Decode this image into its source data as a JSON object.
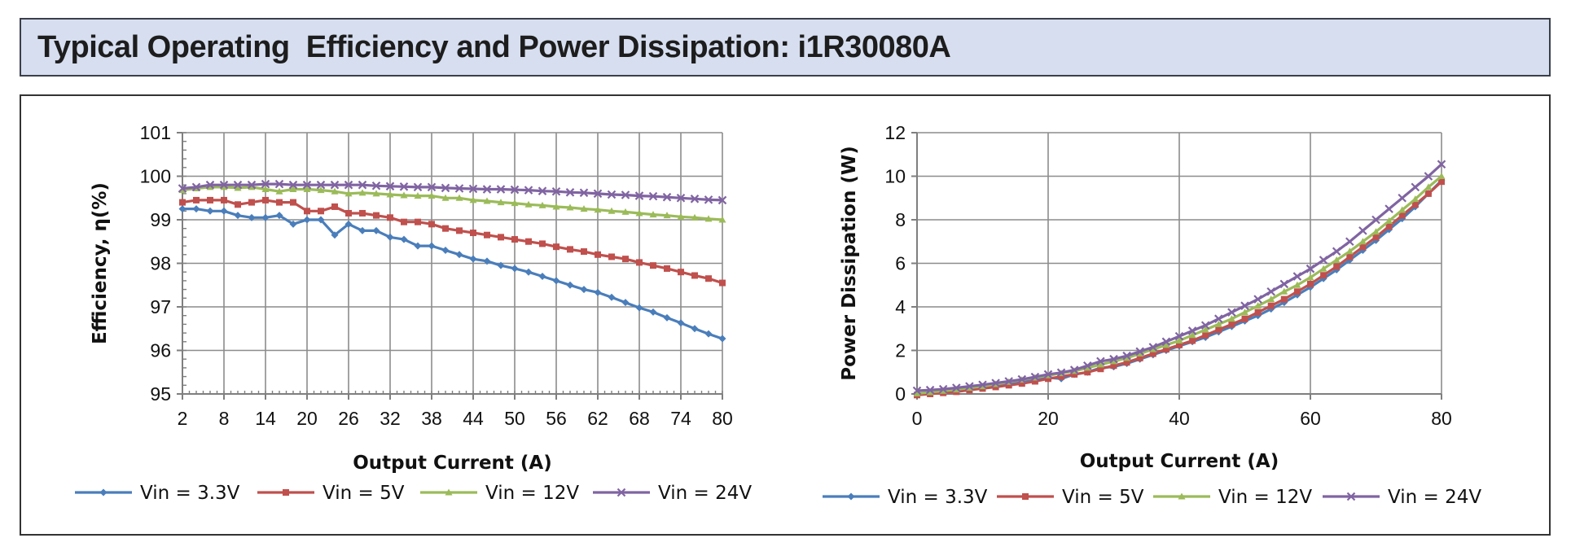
{
  "header": {
    "title": "Typical Operating  Efficiency and Power Dissipation: i1R30080A"
  },
  "colors": {
    "title_bg": "#d6deef",
    "vin_3_3": "#4a7ebb",
    "vin_5": "#c0504d",
    "vin_12": "#9bbb59",
    "vin_24": "#8064a2"
  },
  "chart_data": [
    {
      "type": "line",
      "title": "",
      "xlabel": "Output Current (A)",
      "ylabel": "Efficiency, η(%)",
      "xlim": [
        2,
        80
      ],
      "ylim": [
        95,
        101
      ],
      "xticks": [
        "2",
        "8",
        "14",
        "20",
        "26",
        "32",
        "38",
        "44",
        "50",
        "56",
        "62",
        "68",
        "74",
        "80"
      ],
      "yticks": [
        "95",
        "96",
        "97",
        "98",
        "99",
        "100",
        "101"
      ],
      "grid": true,
      "legend": "bottom",
      "series": [
        {
          "name": "Vin = 3.3V",
          "color": "#4a7ebb",
          "marker": "diamond",
          "x": [
            2,
            4,
            6,
            8,
            10,
            12,
            14,
            16,
            18,
            20,
            22,
            24,
            26,
            28,
            30,
            32,
            34,
            36,
            38,
            40,
            42,
            44,
            46,
            48,
            50,
            52,
            54,
            56,
            58,
            60,
            62,
            64,
            66,
            68,
            70,
            72,
            74,
            76,
            78,
            80
          ],
          "y": [
            99.25,
            99.25,
            99.2,
            99.2,
            99.1,
            99.05,
            99.05,
            99.1,
            98.9,
            99.0,
            99.0,
            98.65,
            98.9,
            98.75,
            98.75,
            98.6,
            98.55,
            98.4,
            98.4,
            98.3,
            98.2,
            98.1,
            98.05,
            97.95,
            97.88,
            97.8,
            97.7,
            97.6,
            97.5,
            97.4,
            97.33,
            97.22,
            97.1,
            96.98,
            96.88,
            96.75,
            96.63,
            96.5,
            96.38,
            96.27
          ]
        },
        {
          "name": "Vin = 5V",
          "color": "#c0504d",
          "marker": "square",
          "x": [
            2,
            4,
            6,
            8,
            10,
            12,
            14,
            16,
            18,
            20,
            22,
            24,
            26,
            28,
            30,
            32,
            34,
            36,
            38,
            40,
            42,
            44,
            46,
            48,
            50,
            52,
            54,
            56,
            58,
            60,
            62,
            64,
            66,
            68,
            70,
            72,
            74,
            76,
            78,
            80
          ],
          "y": [
            99.4,
            99.45,
            99.45,
            99.45,
            99.35,
            99.4,
            99.45,
            99.4,
            99.4,
            99.2,
            99.2,
            99.3,
            99.15,
            99.15,
            99.1,
            99.05,
            98.95,
            98.95,
            98.9,
            98.8,
            98.75,
            98.7,
            98.65,
            98.6,
            98.55,
            98.5,
            98.45,
            98.38,
            98.32,
            98.27,
            98.2,
            98.15,
            98.1,
            98.02,
            97.95,
            97.88,
            97.8,
            97.72,
            97.65,
            97.55
          ]
        },
        {
          "name": "Vin = 12V",
          "color": "#9bbb59",
          "marker": "triangle",
          "x": [
            2,
            4,
            6,
            8,
            10,
            12,
            14,
            16,
            18,
            20,
            22,
            24,
            26,
            28,
            30,
            32,
            34,
            36,
            38,
            40,
            42,
            44,
            46,
            48,
            50,
            52,
            54,
            56,
            58,
            60,
            62,
            64,
            66,
            68,
            70,
            72,
            74,
            76,
            78,
            80
          ],
          "y": [
            99.68,
            99.72,
            99.75,
            99.75,
            99.73,
            99.75,
            99.7,
            99.65,
            99.7,
            99.7,
            99.68,
            99.65,
            99.6,
            99.62,
            99.6,
            99.58,
            99.56,
            99.55,
            99.55,
            99.5,
            99.5,
            99.45,
            99.43,
            99.4,
            99.38,
            99.35,
            99.33,
            99.3,
            99.28,
            99.25,
            99.23,
            99.2,
            99.18,
            99.15,
            99.12,
            99.1,
            99.07,
            99.05,
            99.02,
            99.0
          ]
        },
        {
          "name": "Vin = 24V",
          "color": "#8064a2",
          "marker": "cross",
          "x": [
            2,
            4,
            6,
            8,
            10,
            12,
            14,
            16,
            18,
            20,
            22,
            24,
            26,
            28,
            30,
            32,
            34,
            36,
            38,
            40,
            42,
            44,
            46,
            48,
            50,
            52,
            54,
            56,
            58,
            60,
            62,
            64,
            66,
            68,
            70,
            72,
            74,
            76,
            78,
            80
          ],
          "y": [
            99.72,
            99.75,
            99.8,
            99.8,
            99.8,
            99.8,
            99.82,
            99.82,
            99.8,
            99.8,
            99.8,
            99.8,
            99.8,
            99.8,
            99.78,
            99.77,
            99.76,
            99.75,
            99.75,
            99.73,
            99.72,
            99.71,
            99.7,
            99.7,
            99.69,
            99.68,
            99.66,
            99.65,
            99.63,
            99.62,
            99.6,
            99.58,
            99.57,
            99.55,
            99.54,
            99.52,
            99.5,
            99.48,
            99.46,
            99.45
          ]
        }
      ]
    },
    {
      "type": "line",
      "title": "",
      "xlabel": "Output Current (A)",
      "ylabel": "Power Dissipation (W)",
      "xlim": [
        0,
        80
      ],
      "ylim": [
        0,
        12
      ],
      "xticks": [
        "0",
        "20",
        "40",
        "60",
        "80"
      ],
      "yticks": [
        "0",
        "2",
        "4",
        "6",
        "8",
        "10",
        "12"
      ],
      "grid": true,
      "legend": "bottom",
      "series": [
        {
          "name": "Vin = 3.3V",
          "color": "#4a7ebb",
          "marker": "diamond",
          "x": [
            0,
            2,
            4,
            6,
            8,
            10,
            12,
            14,
            16,
            18,
            20,
            22,
            24,
            26,
            28,
            30,
            32,
            34,
            36,
            38,
            40,
            42,
            44,
            46,
            48,
            50,
            52,
            54,
            56,
            58,
            60,
            62,
            64,
            66,
            68,
            70,
            72,
            74,
            76,
            78,
            80
          ],
          "y": [
            0.0,
            0.05,
            0.1,
            0.18,
            0.25,
            0.32,
            0.4,
            0.48,
            0.55,
            0.65,
            0.75,
            0.7,
            0.9,
            1.0,
            1.2,
            1.25,
            1.4,
            1.6,
            1.8,
            2.0,
            2.2,
            2.4,
            2.6,
            2.85,
            3.1,
            3.35,
            3.6,
            3.9,
            4.2,
            4.55,
            4.9,
            5.3,
            5.7,
            6.15,
            6.6,
            7.05,
            7.55,
            8.05,
            8.6,
            9.2,
            9.8
          ]
        },
        {
          "name": "Vin = 5V",
          "color": "#c0504d",
          "marker": "square",
          "x": [
            0,
            2,
            4,
            6,
            8,
            10,
            12,
            14,
            16,
            18,
            20,
            22,
            24,
            26,
            28,
            30,
            32,
            34,
            36,
            38,
            40,
            42,
            44,
            46,
            48,
            50,
            52,
            54,
            56,
            58,
            60,
            62,
            64,
            66,
            68,
            70,
            72,
            74,
            76,
            78,
            80
          ],
          "y": [
            -0.05,
            0.0,
            0.05,
            0.1,
            0.18,
            0.25,
            0.32,
            0.4,
            0.48,
            0.58,
            0.7,
            0.8,
            0.9,
            1.0,
            1.15,
            1.3,
            1.45,
            1.65,
            1.85,
            2.05,
            2.25,
            2.45,
            2.7,
            2.95,
            3.2,
            3.45,
            3.75,
            4.05,
            4.35,
            4.7,
            5.05,
            5.45,
            5.85,
            6.3,
            6.75,
            7.2,
            7.7,
            8.2,
            8.7,
            9.2,
            9.75
          ]
        },
        {
          "name": "Vin = 12V",
          "color": "#9bbb59",
          "marker": "triangle",
          "x": [
            0,
            2,
            4,
            6,
            8,
            10,
            12,
            14,
            16,
            18,
            20,
            22,
            24,
            26,
            28,
            30,
            32,
            34,
            36,
            38,
            40,
            42,
            44,
            46,
            48,
            50,
            52,
            54,
            56,
            58,
            60,
            62,
            64,
            66,
            68,
            70,
            72,
            74,
            76,
            78,
            80
          ],
          "y": [
            0.02,
            0.08,
            0.14,
            0.2,
            0.28,
            0.35,
            0.45,
            0.55,
            0.65,
            0.75,
            0.85,
            0.95,
            1.05,
            1.2,
            1.35,
            1.5,
            1.65,
            1.85,
            2.05,
            2.25,
            2.45,
            2.7,
            2.95,
            3.2,
            3.45,
            3.75,
            4.05,
            4.35,
            4.7,
            5.0,
            5.35,
            5.75,
            6.15,
            6.55,
            7.0,
            7.45,
            7.95,
            8.45,
            8.95,
            9.5,
            10.0
          ]
        },
        {
          "name": "Vin = 24V",
          "color": "#8064a2",
          "marker": "cross",
          "x": [
            0,
            2,
            4,
            6,
            8,
            10,
            12,
            14,
            16,
            18,
            20,
            22,
            24,
            26,
            28,
            30,
            32,
            34,
            36,
            38,
            40,
            42,
            44,
            46,
            48,
            50,
            52,
            54,
            56,
            58,
            60,
            62,
            64,
            66,
            68,
            70,
            72,
            74,
            76,
            78,
            80
          ],
          "y": [
            0.15,
            0.18,
            0.22,
            0.28,
            0.35,
            0.42,
            0.5,
            0.58,
            0.67,
            0.78,
            0.9,
            0.98,
            1.1,
            1.3,
            1.5,
            1.6,
            1.75,
            1.95,
            2.15,
            2.4,
            2.65,
            2.9,
            3.15,
            3.45,
            3.75,
            4.05,
            4.35,
            4.7,
            5.05,
            5.4,
            5.75,
            6.15,
            6.55,
            7.0,
            7.5,
            8.0,
            8.5,
            9.0,
            9.5,
            10.0,
            10.55
          ]
        }
      ]
    }
  ]
}
